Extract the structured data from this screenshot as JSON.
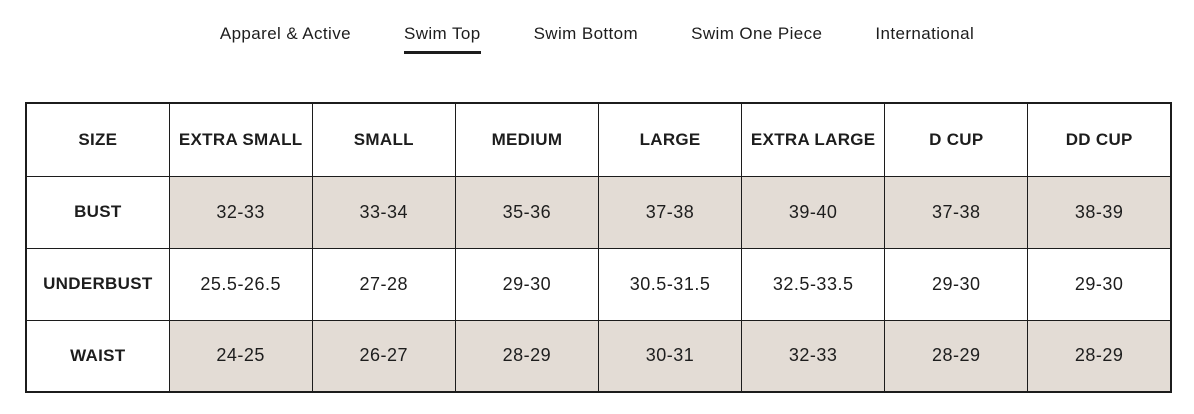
{
  "tabs": [
    {
      "label": "Apparel & Active",
      "active": false
    },
    {
      "label": "Swim Top",
      "active": true
    },
    {
      "label": "Swim Bottom",
      "active": false
    },
    {
      "label": "Swim One Piece",
      "active": false
    },
    {
      "label": "International",
      "active": false
    }
  ],
  "size_chart": {
    "columns": [
      "SIZE",
      "EXTRA SMALL",
      "SMALL",
      "MEDIUM",
      "LARGE",
      "EXTRA LARGE",
      "D CUP",
      "DD CUP"
    ],
    "rows": [
      {
        "label": "BUST",
        "shaded": true,
        "values": [
          "32-33",
          "33-34",
          "35-36",
          "37-38",
          "39-40",
          "37-38",
          "38-39"
        ]
      },
      {
        "label": "UNDERBUST",
        "shaded": false,
        "values": [
          "25.5-26.5",
          "27-28",
          "29-30",
          "30.5-31.5",
          "32.5-33.5",
          "29-30",
          "29-30"
        ]
      },
      {
        "label": "WAIST",
        "shaded": true,
        "values": [
          "24-25",
          "26-27",
          "28-29",
          "30-31",
          "32-33",
          "28-29",
          "28-29"
        ]
      }
    ]
  },
  "colors": {
    "shaded_cell": "#e3dcd5",
    "border": "#1c1c1c",
    "text": "#1d1d1d",
    "background": "#ffffff"
  }
}
